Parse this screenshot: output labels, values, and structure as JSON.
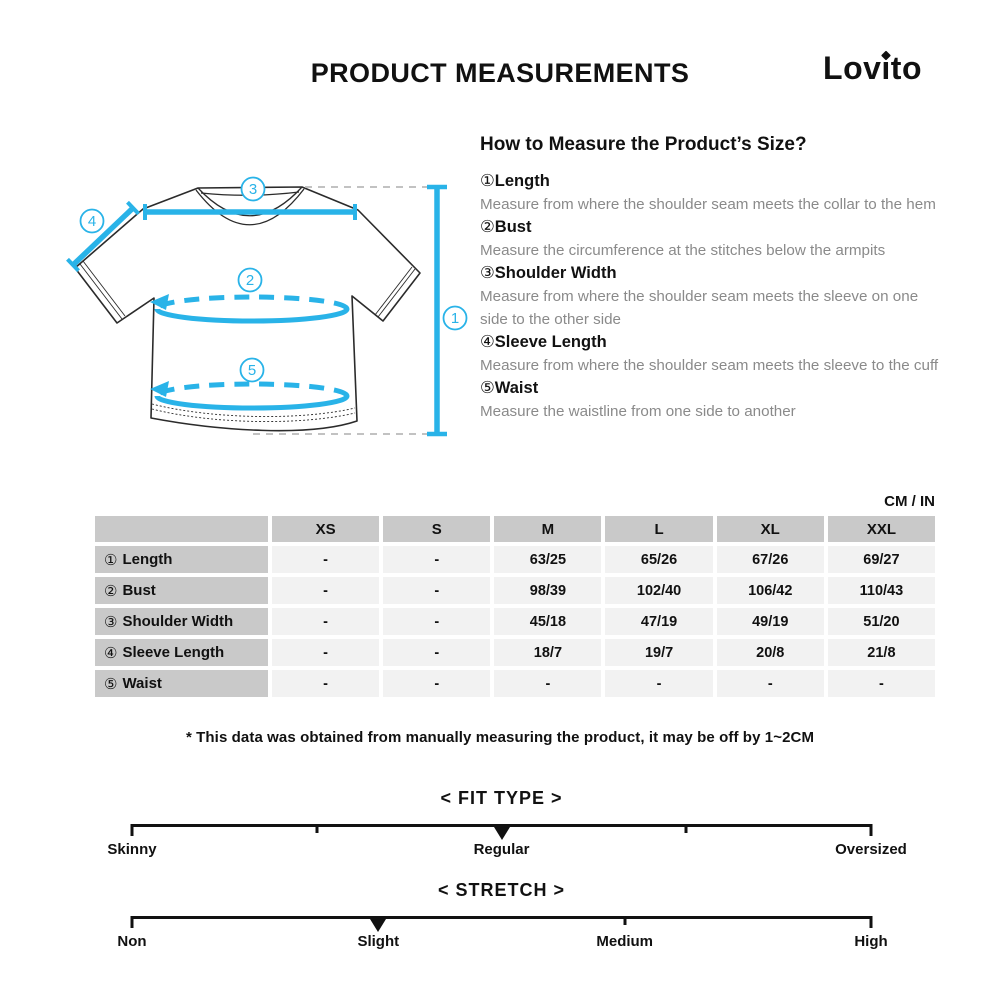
{
  "header": {
    "title": "PRODUCT MEASUREMENTS",
    "brand": "Lovito"
  },
  "how_to": {
    "heading": "How to Measure the Product’s Size?",
    "items": [
      {
        "num": "①",
        "label": "Length",
        "desc": "Measure from where the shoulder seam meets the collar to the hem"
      },
      {
        "num": "②",
        "label": "Bust",
        "desc": "Measure the circumference at the stitches below the armpits"
      },
      {
        "num": "③",
        "label": "Shoulder Width",
        "desc": "Measure from where the shoulder seam meets the sleeve on one side to the other side"
      },
      {
        "num": "④",
        "label": "Sleeve Length",
        "desc": "Measure from where the shoulder seam meets the sleeve to the cuff"
      },
      {
        "num": "⑤",
        "label": "Waist",
        "desc": "Measure the waistline from one side to another"
      }
    ]
  },
  "diagram": {
    "callouts": [
      "1",
      "2",
      "3",
      "4",
      "5"
    ]
  },
  "size_table": {
    "unit_label": "CM / IN",
    "columns": [
      "XS",
      "S",
      "M",
      "L",
      "XL",
      "XXL"
    ],
    "rows": [
      {
        "num": "①",
        "label": "Length",
        "values": [
          "-",
          "-",
          "63/25",
          "65/26",
          "67/26",
          "69/27"
        ]
      },
      {
        "num": "②",
        "label": "Bust",
        "values": [
          "-",
          "-",
          "98/39",
          "102/40",
          "106/42",
          "110/43"
        ]
      },
      {
        "num": "③",
        "label": "Shoulder Width",
        "values": [
          "-",
          "-",
          "45/18",
          "47/19",
          "49/19",
          "51/20"
        ]
      },
      {
        "num": "④",
        "label": "Sleeve Length",
        "values": [
          "-",
          "-",
          "18/7",
          "19/7",
          "20/8",
          "21/8"
        ]
      },
      {
        "num": "⑤",
        "label": "Waist",
        "values": [
          "-",
          "-",
          "-",
          "-",
          "-",
          "-"
        ]
      }
    ]
  },
  "disclaimer": "* This data was obtained from manually measuring the product, it may be off by 1~2CM",
  "scales": [
    {
      "title": "< FIT TYPE >",
      "labels": [
        "Skinny",
        "Regular",
        "Oversized"
      ],
      "label_percents": [
        0,
        50,
        100
      ],
      "tick_percents": [
        0,
        25,
        75,
        100
      ],
      "marker_percent": 50,
      "selected": "Regular"
    },
    {
      "title": "< STRETCH >",
      "labels": [
        "Non",
        "Slight",
        "Medium",
        "High"
      ],
      "label_percents": [
        0,
        33.33,
        66.67,
        100
      ],
      "tick_percents": [
        0,
        66.67,
        100
      ],
      "marker_percent": 33.33,
      "selected": "Slight"
    }
  ],
  "colors": {
    "accent": "#29b3e8",
    "sketch": "#2b2b2b",
    "guide_gray": "#bababa",
    "table_header_bg": "#c9c9c9",
    "table_cell_bg": "#f2f2f2",
    "text_muted": "#8a8a8a"
  }
}
